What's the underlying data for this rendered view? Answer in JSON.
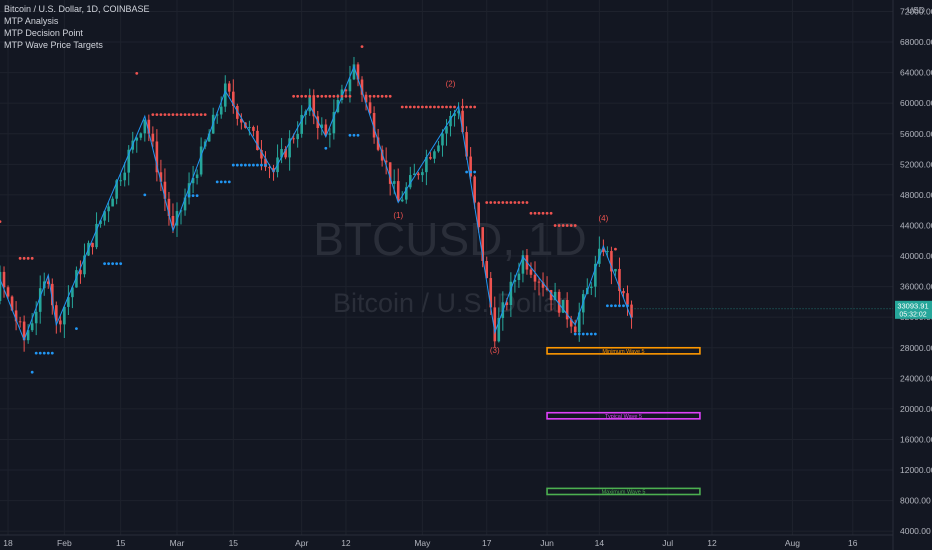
{
  "legend": {
    "symbol_line": "Bitcoin / U.S. Dollar, 1D, COINBASE",
    "indicators": [
      "MTP Analysis",
      "MTP Decision Point",
      "MTP Wave Price Targets"
    ]
  },
  "watermark": {
    "symbol": "BTCUSD, 1D",
    "description": "Bitcoin / U.S. Dollar"
  },
  "colors": {
    "up": "#26a69a",
    "down": "#ef5350",
    "resistance": "#ef5350",
    "support": "#2196f3",
    "zigzag": "#2196f3",
    "minimum": "#ff9800",
    "typical": "#e040fb",
    "maximum": "#4caf50",
    "price_tag_bg": "#26a69a",
    "background": "#131722"
  },
  "chart_data": {
    "type": "candlestick",
    "title": "Bitcoin / U.S. Dollar, 1D, COINBASE",
    "y_axis_unit": "USD",
    "ylim": [
      3500,
      73500
    ],
    "y_ticks": [
      4000,
      8000,
      12000,
      16000,
      20000,
      24000,
      28000,
      32000,
      36000,
      40000,
      44000,
      48000,
      52000,
      56000,
      60000,
      64000,
      68000,
      72000
    ],
    "y_tick_labels": [
      "4000.00",
      "8000.00",
      "12000.00",
      "16000.00",
      "20000.00",
      "24000.00",
      "28000.00",
      "32000.00",
      "36000.00",
      "40000.00",
      "44000.00",
      "48000.00",
      "52000.00",
      "56000.00",
      "60000.00",
      "64000.00",
      "68000.00",
      "72000.00"
    ],
    "x_start": "2021-01-16",
    "x_end": "2021-08-26",
    "x_ticks": [
      {
        "date": "2021-01-18",
        "label": "18"
      },
      {
        "date": "2021-02-01",
        "label": "Feb"
      },
      {
        "date": "2021-02-15",
        "label": "15"
      },
      {
        "date": "2021-03-01",
        "label": "Mar"
      },
      {
        "date": "2021-03-15",
        "label": "15"
      },
      {
        "date": "2021-04-01",
        "label": "Apr"
      },
      {
        "date": "2021-04-12",
        "label": "12"
      },
      {
        "date": "2021-05-01",
        "label": "May"
      },
      {
        "date": "2021-05-17",
        "label": "17"
      },
      {
        "date": "2021-06-01",
        "label": "Jun"
      },
      {
        "date": "2021-06-14",
        "label": "14"
      },
      {
        "date": "2021-07-01",
        "label": "Jul"
      },
      {
        "date": "2021-07-12",
        "label": "12"
      },
      {
        "date": "2021-08-01",
        "label": "Aug"
      },
      {
        "date": "2021-08-16",
        "label": "16"
      }
    ],
    "zigzag": [
      {
        "date": "2021-01-16",
        "y": 37000
      },
      {
        "date": "2021-01-22",
        "y": 29000
      },
      {
        "date": "2021-01-28",
        "y": 37500
      },
      {
        "date": "2021-01-30",
        "y": 31000
      },
      {
        "date": "2021-02-21",
        "y": 58300
      },
      {
        "date": "2021-02-28",
        "y": 43300
      },
      {
        "date": "2021-03-13",
        "y": 61600
      },
      {
        "date": "2021-03-25",
        "y": 51000
      },
      {
        "date": "2021-04-03",
        "y": 59700
      },
      {
        "date": "2021-04-07",
        "y": 55600
      },
      {
        "date": "2021-04-14",
        "y": 64800
      },
      {
        "date": "2021-04-25",
        "y": 47000
      },
      {
        "date": "2021-05-10",
        "y": 59600
      },
      {
        "date": "2021-05-19",
        "y": 30000
      },
      {
        "date": "2021-05-26",
        "y": 39900
      },
      {
        "date": "2021-06-08",
        "y": 31000
      },
      {
        "date": "2021-06-15",
        "y": 41300
      },
      {
        "date": "2021-06-22",
        "y": 31800
      }
    ],
    "wave_labels": [
      {
        "text": "(1)",
        "date": "2021-04-25",
        "y": 45000
      },
      {
        "text": "(2)",
        "date": "2021-05-08",
        "y": 62200
      },
      {
        "text": "(3)",
        "date": "2021-05-19",
        "y": 27300
      },
      {
        "text": "(4)",
        "date": "2021-06-15",
        "y": 44600
      }
    ],
    "resistance_dots": [
      {
        "from": "2021-01-01",
        "to": "2021-01-16",
        "y": 44500
      },
      {
        "from": "2021-02-23",
        "to": "2021-03-08",
        "y": 58500
      },
      {
        "from": "2021-03-30",
        "to": "2021-04-13",
        "y": 60900
      },
      {
        "from": "2021-04-18",
        "to": "2021-04-23",
        "y": 60900
      },
      {
        "from": "2021-04-26",
        "to": "2021-05-09",
        "y": 59500
      },
      {
        "from": "2021-05-17",
        "to": "2021-05-27",
        "y": 47000
      },
      {
        "from": "2021-05-28",
        "to": "2021-06-02",
        "y": 45600
      },
      {
        "from": "2021-06-03",
        "to": "2021-06-08",
        "y": 44000
      },
      {
        "from": "2021-01-21",
        "to": "2021-01-24",
        "y": 39700
      },
      {
        "from": "2021-02-19",
        "to": "2021-02-19",
        "y": 63900
      },
      {
        "from": "2021-04-16",
        "to": "2021-04-16",
        "y": 67400
      },
      {
        "from": "2021-05-11",
        "to": "2021-05-14",
        "y": 59500
      },
      {
        "from": "2021-06-18",
        "to": "2021-06-18",
        "y": 40900
      }
    ],
    "support_dots": [
      {
        "from": "2021-01-25",
        "to": "2021-01-29",
        "y": 27300
      },
      {
        "from": "2021-01-24",
        "to": "2021-01-24",
        "y": 24800
      },
      {
        "from": "2021-02-11",
        "to": "2021-02-15",
        "y": 39000
      },
      {
        "from": "2021-03-11",
        "to": "2021-03-14",
        "y": 49700
      },
      {
        "from": "2021-03-15",
        "to": "2021-03-23",
        "y": 51900
      },
      {
        "from": "2021-03-04",
        "to": "2021-03-06",
        "y": 47900
      },
      {
        "from": "2021-04-13",
        "to": "2021-04-15",
        "y": 55800
      },
      {
        "from": "2021-04-07",
        "to": "2021-04-07",
        "y": 54100
      },
      {
        "from": "2021-05-12",
        "to": "2021-05-14",
        "y": 51000
      },
      {
        "from": "2021-06-08",
        "to": "2021-06-13",
        "y": 29800
      },
      {
        "from": "2021-06-16",
        "to": "2021-06-21",
        "y": 33500
      },
      {
        "from": "2021-02-04",
        "to": "2021-02-04",
        "y": 30500
      },
      {
        "from": "2021-02-21",
        "to": "2021-02-21",
        "y": 48000
      }
    ],
    "targets": [
      {
        "label": "Minimum Wave 5",
        "y_top": 28000,
        "y_bottom": 27200,
        "from": "2021-06-01",
        "to": "2021-07-09",
        "color_key": "minimum"
      },
      {
        "label": "Typical Wave 5",
        "y_top": 19500,
        "y_bottom": 18700,
        "from": "2021-06-01",
        "to": "2021-07-09",
        "color_key": "typical"
      },
      {
        "label": "Maximum Wave 5",
        "y_top": 9600,
        "y_bottom": 8800,
        "from": "2021-06-01",
        "to": "2021-07-09",
        "color_key": "maximum"
      }
    ],
    "last_price": {
      "value": "33093.91",
      "timer": "05:32:02",
      "y": 33093.91
    }
  }
}
